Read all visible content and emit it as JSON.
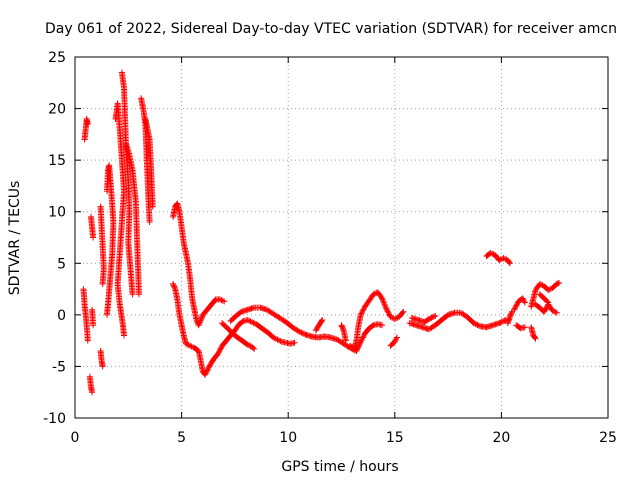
{
  "chart_data": {
    "type": "scatter",
    "title": "Day 061 of 2022, Sidereal Day-to-day VTEC variation (SDTVAR) for receiver amcn",
    "xlabel": "GPS time / hours",
    "ylabel": "SDTVAR / TECUs",
    "xlim": [
      0,
      25
    ],
    "ylim": [
      -10,
      25
    ],
    "xticks": [
      0,
      5,
      10,
      15,
      20,
      25
    ],
    "yticks": [
      -10,
      -5,
      0,
      5,
      10,
      15,
      20,
      25
    ],
    "grid": true,
    "marker": "+",
    "marker_color": "#ff0000",
    "series": [
      {
        "name": "SDTVAR",
        "note": "Dense arcs of '+' markers; values read from the figure as polyline traces (x in hours, y in TECU)",
        "traces": [
          [
            [
              0.45,
              17.0
            ],
            [
              0.5,
              18.0
            ],
            [
              0.55,
              19.0
            ],
            [
              0.6,
              18.5
            ]
          ],
          [
            [
              0.4,
              2.5
            ],
            [
              0.45,
              1.0
            ],
            [
              0.5,
              0.0
            ],
            [
              0.55,
              -1.0
            ],
            [
              0.6,
              -2.5
            ]
          ],
          [
            [
              0.7,
              -6.0
            ],
            [
              0.75,
              -7.0
            ],
            [
              0.8,
              -7.5
            ]
          ],
          [
            [
              0.8,
              0.5
            ],
            [
              0.85,
              -1.0
            ]
          ],
          [
            [
              0.75,
              9.5
            ],
            [
              0.8,
              8.5
            ],
            [
              0.85,
              7.5
            ]
          ],
          [
            [
              1.2,
              10.5
            ],
            [
              1.25,
              8.5
            ],
            [
              1.3,
              6.5
            ],
            [
              1.35,
              4.5
            ],
            [
              1.3,
              3.0
            ]
          ],
          [
            [
              1.2,
              -3.5
            ],
            [
              1.25,
              -4.5
            ],
            [
              1.3,
              -5.0
            ]
          ],
          [
            [
              1.5,
              12.0
            ],
            [
              1.55,
              14.0
            ],
            [
              1.6,
              14.5
            ],
            [
              1.7,
              12.0
            ],
            [
              1.8,
              9.0
            ],
            [
              1.75,
              6.0
            ],
            [
              1.65,
              3.5
            ],
            [
              1.55,
              1.0
            ],
            [
              1.5,
              0.0
            ]
          ],
          [
            [
              1.9,
              19.0
            ],
            [
              2.0,
              20.5
            ],
            [
              2.1,
              18.0
            ],
            [
              2.2,
              15.0
            ],
            [
              2.3,
              12.0
            ],
            [
              2.2,
              9.0
            ],
            [
              2.1,
              6.0
            ],
            [
              2.0,
              3.0
            ],
            [
              2.1,
              1.0
            ],
            [
              2.25,
              -1.0
            ],
            [
              2.3,
              -2.0
            ]
          ],
          [
            [
              2.2,
              23.5
            ],
            [
              2.3,
              22.0
            ],
            [
              2.35,
              19.0
            ],
            [
              2.4,
              16.0
            ],
            [
              2.5,
              13.0
            ],
            [
              2.55,
              10.0
            ],
            [
              2.5,
              7.0
            ],
            [
              2.6,
              4.5
            ],
            [
              2.7,
              2.0
            ]
          ],
          [
            [
              2.4,
              16.5
            ],
            [
              2.55,
              15.5
            ],
            [
              2.7,
              14.0
            ],
            [
              2.85,
              11.0
            ],
            [
              2.9,
              8.0
            ],
            [
              2.95,
              5.0
            ],
            [
              3.0,
              2.0
            ]
          ],
          [
            [
              3.1,
              21.0
            ],
            [
              3.2,
              20.0
            ],
            [
              3.3,
              18.5
            ],
            [
              3.35,
              16.0
            ],
            [
              3.4,
              13.5
            ],
            [
              3.45,
              11.0
            ],
            [
              3.5,
              9.0
            ]
          ],
          [
            [
              3.3,
              19.0
            ],
            [
              3.4,
              18.0
            ],
            [
              3.5,
              17.0
            ],
            [
              3.55,
              15.0
            ],
            [
              3.6,
              12.5
            ],
            [
              3.65,
              10.5
            ]
          ],
          [
            [
              4.6,
              9.5
            ],
            [
              4.7,
              10.5
            ],
            [
              4.8,
              10.8
            ],
            [
              4.9,
              10.0
            ],
            [
              5.0,
              8.5
            ],
            [
              5.1,
              7.0
            ],
            [
              5.2,
              6.0
            ],
            [
              5.3,
              5.0
            ],
            [
              5.4,
              3.5
            ],
            [
              5.5,
              1.5
            ],
            [
              5.6,
              0.5
            ],
            [
              5.7,
              -0.5
            ],
            [
              5.8,
              -1.0
            ],
            [
              5.9,
              -0.5
            ],
            [
              6.0,
              0.0
            ],
            [
              6.2,
              0.5
            ],
            [
              6.4,
              1.0
            ],
            [
              6.6,
              1.5
            ],
            [
              6.8,
              1.5
            ],
            [
              7.0,
              1.3
            ]
          ],
          [
            [
              4.6,
              3.0
            ],
            [
              4.7,
              2.5
            ],
            [
              4.8,
              1.5
            ],
            [
              4.9,
              0.0
            ],
            [
              5.0,
              -1.0
            ],
            [
              5.1,
              -2.0
            ],
            [
              5.2,
              -2.8
            ],
            [
              5.4,
              -3.0
            ],
            [
              5.6,
              -3.2
            ],
            [
              5.8,
              -3.5
            ],
            [
              5.9,
              -4.5
            ],
            [
              6.0,
              -5.5
            ],
            [
              6.1,
              -5.8
            ],
            [
              6.3,
              -5.0
            ],
            [
              6.5,
              -4.3
            ],
            [
              6.7,
              -3.8
            ],
            [
              6.9,
              -3.0
            ],
            [
              7.1,
              -2.5
            ],
            [
              7.3,
              -2.0
            ],
            [
              7.5,
              -1.5
            ],
            [
              7.7,
              -0.9
            ],
            [
              7.9,
              -0.6
            ],
            [
              8.1,
              -0.5
            ],
            [
              8.3,
              -0.7
            ],
            [
              8.5,
              -0.9
            ],
            [
              8.7,
              -1.2
            ],
            [
              8.9,
              -1.5
            ],
            [
              9.1,
              -1.8
            ],
            [
              9.3,
              -2.2
            ],
            [
              9.5,
              -2.4
            ],
            [
              9.7,
              -2.6
            ],
            [
              9.9,
              -2.7
            ],
            [
              10.1,
              -2.8
            ],
            [
              10.3,
              -2.7
            ]
          ],
          [
            [
              6.9,
              -0.8
            ],
            [
              7.1,
              -1.2
            ],
            [
              7.3,
              -1.6
            ],
            [
              7.5,
              -2.0
            ],
            [
              7.7,
              -2.3
            ],
            [
              7.9,
              -2.6
            ],
            [
              8.1,
              -2.9
            ],
            [
              8.3,
              -3.1
            ],
            [
              8.4,
              -3.3
            ]
          ],
          [
            [
              7.3,
              -0.6
            ],
            [
              7.5,
              -0.2
            ],
            [
              7.8,
              0.3
            ],
            [
              8.1,
              0.5
            ],
            [
              8.4,
              0.7
            ],
            [
              8.7,
              0.7
            ],
            [
              9.0,
              0.5
            ],
            [
              9.3,
              0.1
            ],
            [
              9.6,
              -0.3
            ],
            [
              9.9,
              -0.7
            ],
            [
              10.2,
              -1.2
            ],
            [
              10.5,
              -1.6
            ],
            [
              10.8,
              -1.9
            ],
            [
              11.1,
              -2.1
            ],
            [
              11.4,
              -2.2
            ],
            [
              11.7,
              -2.1
            ],
            [
              12.0,
              -2.2
            ],
            [
              12.3,
              -2.4
            ],
            [
              12.6,
              -2.8
            ],
            [
              12.9,
              -3.2
            ],
            [
              13.2,
              -3.5
            ]
          ],
          [
            [
              11.3,
              -1.5
            ],
            [
              11.5,
              -0.8
            ],
            [
              11.6,
              -0.5
            ]
          ],
          [
            [
              12.5,
              -1.0
            ],
            [
              12.6,
              -1.5
            ],
            [
              12.7,
              -2.5
            ]
          ],
          [
            [
              12.9,
              -3.0
            ],
            [
              13.1,
              -3.3
            ],
            [
              13.2,
              -2.5
            ],
            [
              13.3,
              -1.0
            ],
            [
              13.4,
              0.0
            ],
            [
              13.6,
              0.8
            ],
            [
              13.8,
              1.4
            ],
            [
              14.0,
              2.0
            ],
            [
              14.2,
              2.2
            ],
            [
              14.4,
              1.6
            ],
            [
              14.6,
              0.6
            ],
            [
              14.8,
              -0.2
            ],
            [
              15.0,
              -0.4
            ],
            [
              15.2,
              -0.2
            ],
            [
              15.4,
              0.3
            ]
          ],
          [
            [
              13.2,
              -3.5
            ],
            [
              13.4,
              -2.6
            ],
            [
              13.6,
              -1.8
            ],
            [
              13.8,
              -1.3
            ],
            [
              14.0,
              -1.0
            ],
            [
              14.2,
              -0.9
            ],
            [
              14.4,
              -1.0
            ]
          ],
          [
            [
              15.7,
              -0.8
            ],
            [
              16.0,
              -1.0
            ],
            [
              16.3,
              -1.2
            ],
            [
              16.6,
              -1.4
            ],
            [
              16.9,
              -1.0
            ],
            [
              17.2,
              -0.5
            ],
            [
              17.5,
              0.0
            ],
            [
              17.8,
              0.2
            ],
            [
              18.1,
              0.2
            ],
            [
              18.4,
              -0.2
            ],
            [
              18.7,
              -0.8
            ],
            [
              19.0,
              -1.1
            ],
            [
              19.3,
              -1.2
            ],
            [
              19.6,
              -1.0
            ],
            [
              19.9,
              -0.8
            ],
            [
              20.2,
              -0.5
            ]
          ],
          [
            [
              15.8,
              -0.3
            ],
            [
              16.1,
              -0.5
            ],
            [
              16.4,
              -0.7
            ],
            [
              16.6,
              -0.4
            ],
            [
              16.9,
              -0.1
            ]
          ],
          [
            [
              14.8,
              -3.0
            ],
            [
              15.0,
              -2.6
            ],
            [
              15.1,
              -2.2
            ]
          ],
          [
            [
              19.3,
              5.7
            ],
            [
              19.5,
              6.0
            ],
            [
              19.7,
              5.8
            ],
            [
              19.9,
              5.3
            ],
            [
              20.1,
              5.5
            ],
            [
              20.3,
              5.3
            ],
            [
              20.4,
              5.0
            ]
          ],
          [
            [
              20.3,
              -0.8
            ],
            [
              20.4,
              -0.2
            ],
            [
              20.5,
              0.3
            ]
          ],
          [
            [
              20.6,
              0.5
            ],
            [
              20.8,
              1.3
            ],
            [
              21.0,
              1.6
            ],
            [
              21.1,
              1.2
            ]
          ],
          [
            [
              20.7,
              -1.0
            ],
            [
              20.9,
              -1.3
            ],
            [
              21.1,
              -1.2
            ]
          ],
          [
            [
              21.4,
              0.8
            ],
            [
              21.6,
              2.4
            ],
            [
              21.8,
              3.0
            ],
            [
              22.0,
              2.8
            ],
            [
              22.2,
              2.4
            ],
            [
              22.4,
              2.6
            ],
            [
              22.6,
              3.0
            ],
            [
              22.7,
              3.1
            ]
          ],
          [
            [
              21.4,
              -1.2
            ],
            [
              21.5,
              -2.0
            ],
            [
              21.6,
              -2.3
            ]
          ],
          [
            [
              21.6,
              1.0
            ],
            [
              21.8,
              0.7
            ],
            [
              22.0,
              0.3
            ],
            [
              22.2,
              1.0
            ],
            [
              22.4,
              0.4
            ],
            [
              22.6,
              0.2
            ]
          ],
          [
            [
              21.8,
              2.0
            ],
            [
              22.0,
              1.6
            ],
            [
              22.2,
              1.2
            ]
          ]
        ]
      }
    ]
  }
}
